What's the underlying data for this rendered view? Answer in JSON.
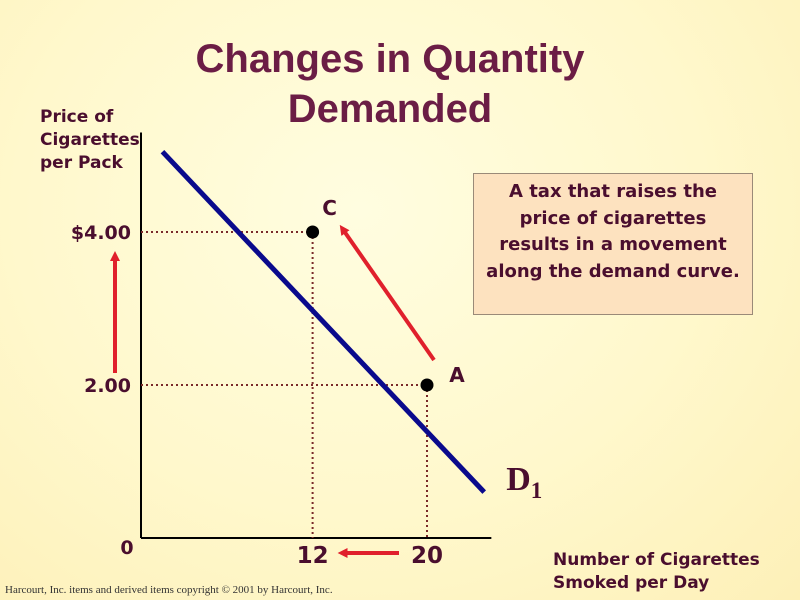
{
  "title": "Changes in Quantity Demanded",
  "y_axis_label": [
    "Price of",
    "Cigarettes",
    "per Pack"
  ],
  "x_axis_label": [
    "Number of Cigarettes",
    "Smoked per Day"
  ],
  "callout_text": "A tax that raises the price of cigarettes results in a movement along the demand curve.",
  "copyright": "Harcourt, Inc. items and derived items copyright © 2001 by Harcourt, Inc.",
  "colors": {
    "title": "#6b1d45",
    "text": "#4a0e2e",
    "demand_curve": "#0a0a8c",
    "arrow": "#e0202c",
    "guide": "#7a2a2a",
    "callout_bg": "#fde2bf",
    "background": "#fff8cc"
  },
  "chart_data": {
    "type": "line",
    "title": "Changes in Quantity Demanded",
    "xlabel": "Number of Cigarettes Smoked per Day",
    "ylabel": "Price of Cigarettes per Pack",
    "origin_label": "0",
    "xlim": [
      0,
      24.5
    ],
    "ylim": [
      0,
      5.3
    ],
    "x_ticks": [
      {
        "value": 12,
        "label": "12"
      },
      {
        "value": 20,
        "label": "20"
      }
    ],
    "y_ticks": [
      {
        "value": 4.0,
        "label": "$4.00"
      },
      {
        "value": 2.0,
        "label": "2.00"
      }
    ],
    "series": [
      {
        "name": "D1",
        "label_main": "D",
        "label_sub": "1",
        "points": [
          [
            1.5,
            5.05
          ],
          [
            24.0,
            0.6
          ]
        ]
      }
    ],
    "points": [
      {
        "label": "C",
        "x": 12,
        "y": 4.0
      },
      {
        "label": "A",
        "x": 20,
        "y": 2.0
      }
    ],
    "grid": false
  }
}
